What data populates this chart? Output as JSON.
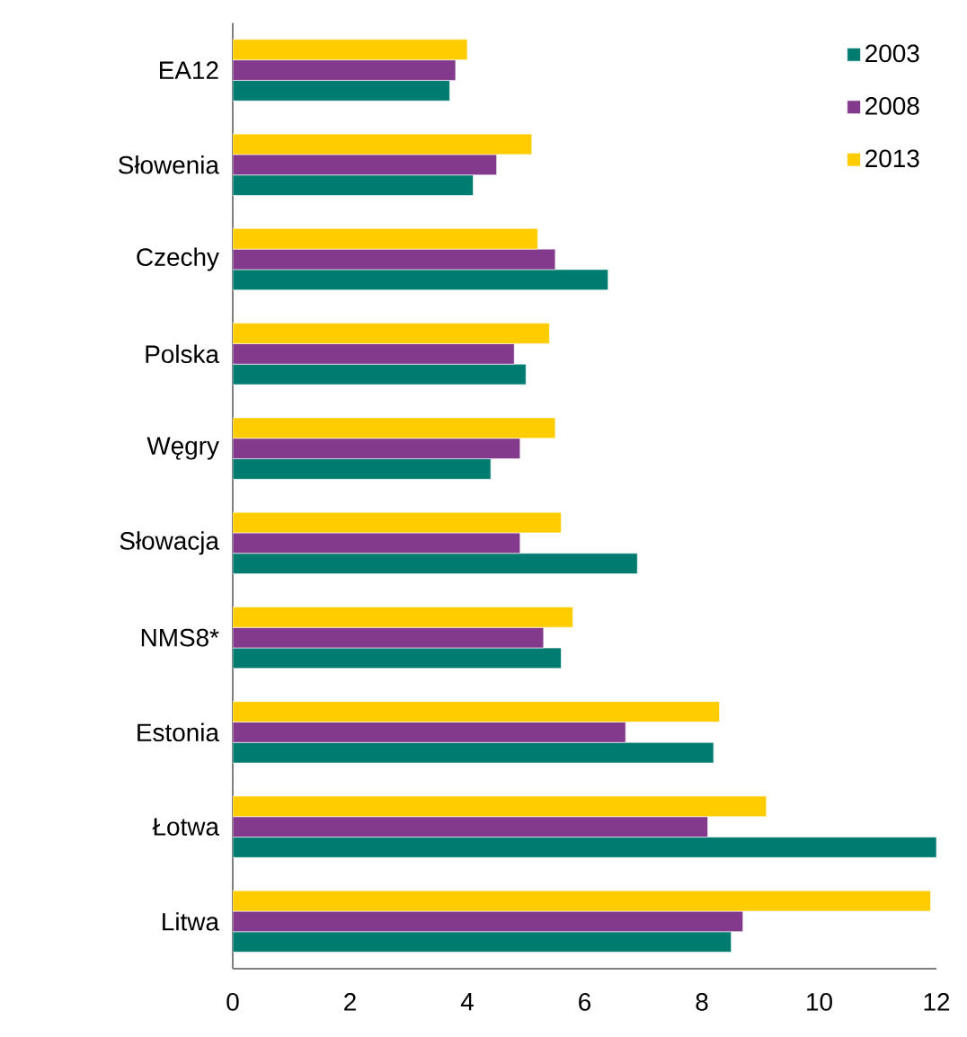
{
  "chart_data": {
    "type": "bar",
    "orientation": "horizontal",
    "categories": [
      "EA12",
      "Słowenia",
      "Czechy",
      "Polska",
      "Węgry",
      "Słowacja",
      "NMS8*",
      "Estonia",
      "Łotwa",
      "Litwa"
    ],
    "series": [
      {
        "name": "2003",
        "color": "#007b6f",
        "values": [
          3.7,
          4.1,
          6.4,
          5.0,
          4.4,
          6.9,
          5.6,
          8.2,
          12.0,
          8.5
        ]
      },
      {
        "name": "2008",
        "color": "#833a8c",
        "values": [
          3.8,
          4.5,
          5.5,
          4.8,
          4.9,
          4.9,
          5.3,
          6.7,
          8.1,
          8.7
        ]
      },
      {
        "name": "2013",
        "color": "#ffcc00",
        "values": [
          4.0,
          5.1,
          5.2,
          5.4,
          5.5,
          5.6,
          5.8,
          8.3,
          9.1,
          11.9
        ]
      }
    ],
    "xlim": [
      0,
      12
    ],
    "xticks": [
      0,
      2,
      4,
      6,
      8,
      10,
      12
    ],
    "legend": "top right"
  }
}
